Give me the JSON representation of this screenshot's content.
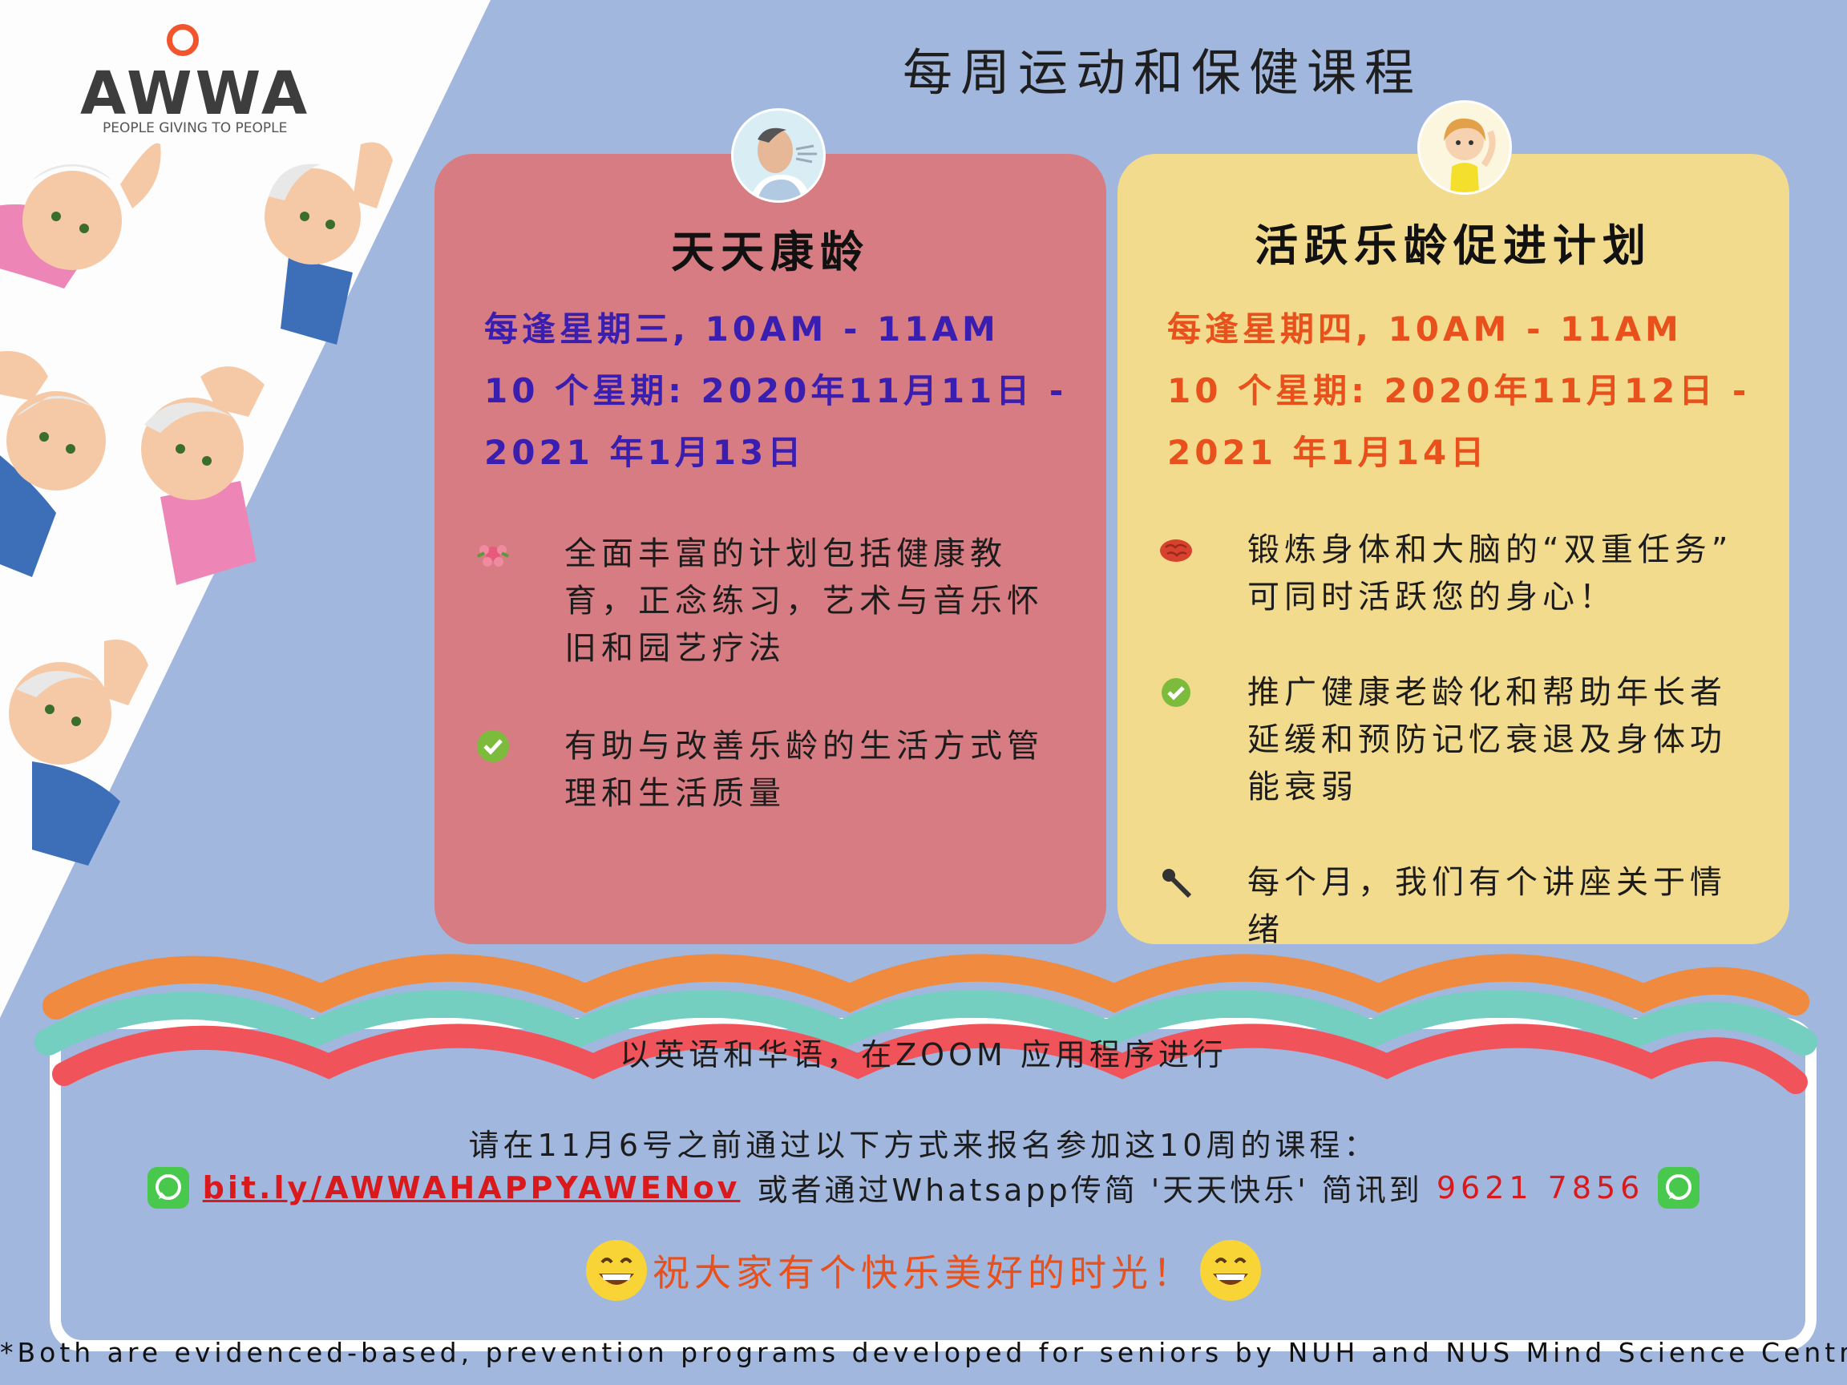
{
  "logo": {
    "wordmark": "AWWA",
    "tagline": "PEOPLE GIVING TO PEOPLE"
  },
  "title": "每周运动和保健课程",
  "cards": [
    {
      "title": "天天康龄",
      "schedule": [
        "每逢星期三, 10AM - 11AM",
        "10 个星期: 2020年11月11日 -",
        "2021 年1月13日"
      ],
      "points": [
        {
          "icon": "flower-icon",
          "text": "全面丰富的计划包括健康教育，正念练习，艺术与音乐怀旧和园艺疗法"
        },
        {
          "icon": "check-icon",
          "text": "有助与改善乐龄的生活方式管理和生活质量"
        }
      ]
    },
    {
      "title": "活跃乐龄促进计划",
      "schedule": [
        "每逢星期四, 10AM - 11AM",
        "10 个星期: 2020年11月12日 -",
        "2021 年1月14日"
      ],
      "points": [
        {
          "icon": "brain-icon",
          "text": "锻炼身体和大脑的“双重任务” 可同时活跃您的身心！"
        },
        {
          "icon": "check-icon",
          "text": "推广健康老龄化和帮助年长者延缓和预防记忆衰退及身体功能衰弱"
        },
        {
          "icon": "microphone-icon",
          "text": "每个月，我们有个讲座关于情绪"
        }
      ]
    }
  ],
  "bottom": {
    "language": "以英语和华语，在ZOOM 应用程序进行",
    "register": "请在11月6号之前通过以下方式来报名参加这10周的课程：",
    "link": "bit.ly/AWWAHAPPYAWENov",
    "via": "或者通过Whatsapp传简 '天天快乐' 简讯到",
    "phone": "9621 7856",
    "wish": "祝大家有个快乐美好的时光！"
  },
  "footnote": "*Both are evidenced-based, prevention programs developed for seniors by NUH and NUS Mind Science Centre",
  "colors": {
    "background": "#a2b7dd",
    "card_left": "#d67c82",
    "card_right": "#f3db8e",
    "schedule_left": "#3a1eb0",
    "schedule_right": "#e8501c",
    "link": "#d9191b",
    "whatsapp": "#48c84c"
  }
}
